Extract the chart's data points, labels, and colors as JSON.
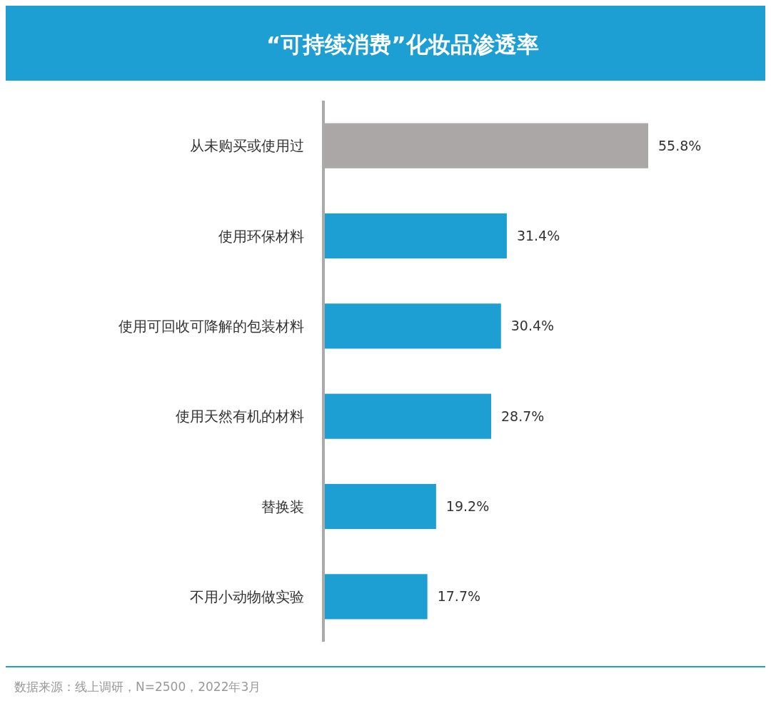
{
  "chart_data": {
    "type": "bar",
    "orientation": "horizontal",
    "title": "“可持续消费”化妆品渗透率",
    "categories": [
      "从未购买或使用过",
      "使用环保材料",
      "使用可回收可降解的包装材料",
      "使用天然有机的材料",
      "替换装",
      "不用小动物做实验"
    ],
    "values": [
      55.8,
      31.4,
      30.4,
      28.7,
      19.2,
      17.7
    ],
    "colors": [
      "#aba7a6",
      "#1e9fd4",
      "#1e9fd4",
      "#1e9fd4",
      "#1e9fd4",
      "#1e9fd4"
    ],
    "value_labels": [
      "55.8%",
      "31.4%",
      "30.4%",
      "28.7%",
      "19.2%",
      "17.7%"
    ],
    "annotations": [
      "数据来源：线上调研，N=2500，2022年3月"
    ]
  }
}
